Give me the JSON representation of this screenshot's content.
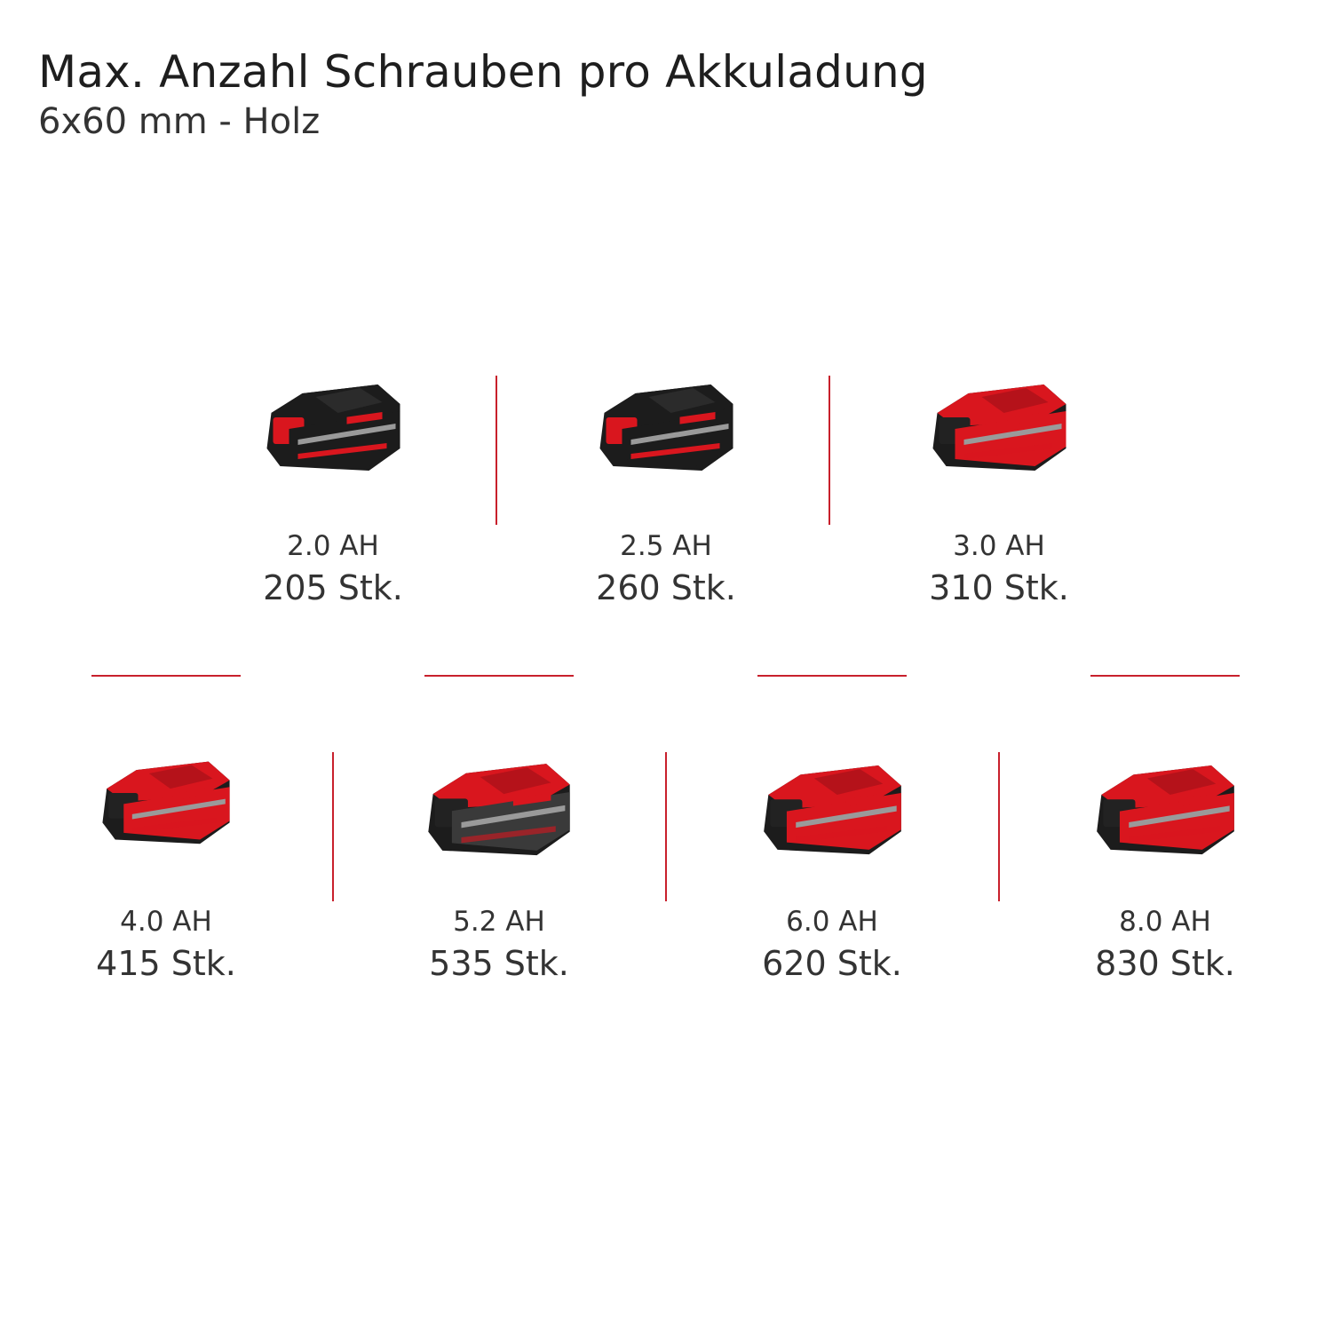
{
  "header": {
    "title": "Max. Anzahl Schrauben pro Akkuladung",
    "subtitle": "6x60 mm - Holz"
  },
  "colors": {
    "accent": "#c8202c",
    "battery_red": "#d9161e",
    "battery_black": "#1c1c1c"
  },
  "batteries": [
    {
      "capacity": "2.0 AH",
      "count": "205 Stk.",
      "style": "black"
    },
    {
      "capacity": "2.5 AH",
      "count": "260 Stk.",
      "style": "black"
    },
    {
      "capacity": "3.0 AH",
      "count": "310 Stk.",
      "style": "red"
    },
    {
      "capacity": "4.0 AH",
      "count": "415 Stk.",
      "style": "red"
    },
    {
      "capacity": "5.2 AH",
      "count": "535 Stk.",
      "style": "grey"
    },
    {
      "capacity": "6.0 AH",
      "count": "620 Stk.",
      "style": "red"
    },
    {
      "capacity": "8.0 AH",
      "count": "830 Stk.",
      "style": "red"
    }
  ]
}
